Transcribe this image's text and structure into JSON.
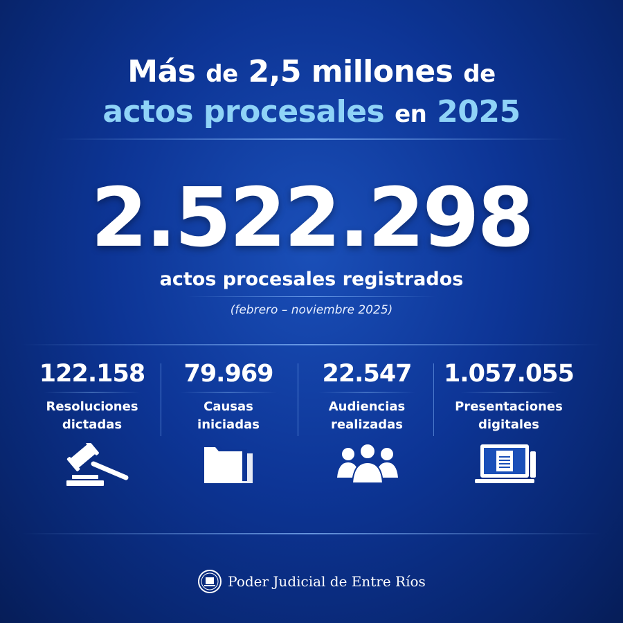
{
  "headline": {
    "line1_a": "Más",
    "line1_b": "de",
    "line1_c": "2,5 millones",
    "line1_d": "de",
    "line2_a": "actos procesales",
    "line2_b": "en",
    "line2_c": "2025"
  },
  "total": {
    "value": "2.522.298",
    "label": "actos procesales registrados",
    "period": "(febrero – noviembre 2025)"
  },
  "stats": [
    {
      "value": "122.158",
      "label1": "Resoluciones",
      "label2": "dictadas",
      "icon": "gavel-icon"
    },
    {
      "value": "79.969",
      "label1": "Causas",
      "label2": "iniciadas",
      "icon": "folders-icon"
    },
    {
      "value": "22.547",
      "label1": "Audiencias",
      "label2": "realizadas",
      "icon": "people-icon"
    },
    {
      "value": "1.057.055",
      "label1": "Presentaciones",
      "label2": "digitales",
      "icon": "laptop-document-icon"
    }
  ],
  "footer": {
    "org": "Poder Judicial de Entre Ríos"
  },
  "colors": {
    "accent": "#8fd3f7",
    "background": "#0d3596"
  }
}
